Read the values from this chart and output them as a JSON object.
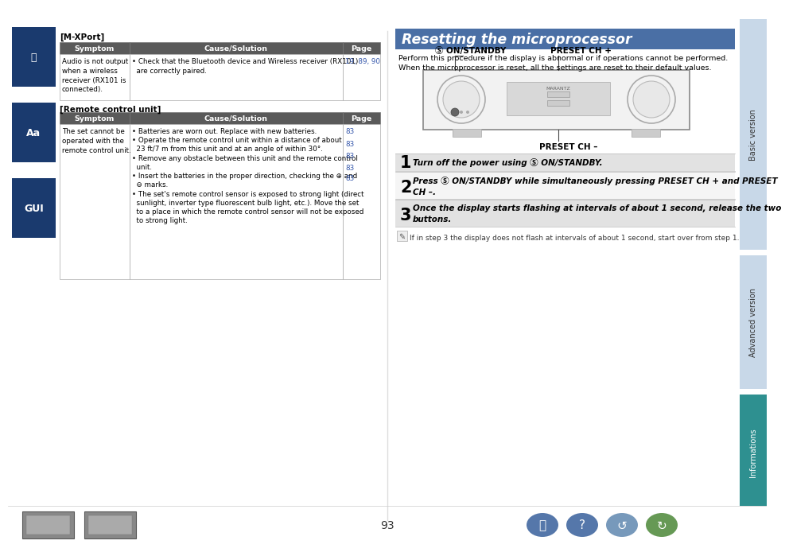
{
  "bg_color": "#ffffff",
  "title_bg": "#4a6fa5",
  "title_text": "Resetting the microprocessor",
  "title_color": "#ffffff",
  "header_bg": "#5a5a5a",
  "header_text_color": "#ffffff",
  "mxport_label": "[M-XPort]",
  "remote_label": "[Remote control unit]",
  "table1_headers": [
    "Symptom",
    "Cause/Solution",
    "Page"
  ],
  "table1_symptom": "Audio is not output\nwhen a wireless\nreceiver (RX101 is\nconnected).",
  "table1_cause": "• Check that the Bluetooth device and Wireless receiver (RX101)\n  are correctly paired.",
  "table1_page": "19, 89, 90",
  "table2_headers": [
    "Symptom",
    "Cause/Solution",
    "Page"
  ],
  "table2_symptom": "The set cannot be\noperated with the\nremote control unit.",
  "table2_causes": [
    "• Batteries are worn out. Replace with new batteries.",
    "• Operate the remote control unit within a distance of about\n  23 ft/7 m from this unit and at an angle of within 30°.",
    "• Remove any obstacle between this unit and the remote control\n  unit.",
    "• Insert the batteries in the proper direction, checking the ⊕ and\n  ⊖ marks.",
    "• The set's remote control sensor is exposed to strong light (direct\n  sunlight, inverter type fluorescent bulb light, etc.). Move the set\n  to a place in which the remote control sensor will not be exposed\n  to strong light."
  ],
  "table2_pages": [
    "83",
    "83",
    "83",
    "83",
    "83"
  ],
  "intro_text": "Perform this procedure if the display is abnormal or if operations cannot be performed.\nWhen the microprocessor is reset, all the settings are reset to their default values.",
  "label_onstandby": "Ⓢ ON/STANDBY",
  "label_presetch_plus": "PRESET CH +",
  "label_presetch_minus": "PRESET CH –",
  "step1_text_normal": "Turn off the power using ",
  "step1_text_bold": "Ⓢ ON/STANDBY.",
  "step2_line1": "Press Ⓢ ON/STANDBY while simultaneously pressing PRESET CH + and PRESET",
  "step2_line2": "CH –.",
  "step3_line1": "Once the display starts flashing at intervals of about 1 second, release the two",
  "step3_line2": "buttons.",
  "note_text": "If in step 3 the display does not flash at intervals of about 1 second, start over from step 1.",
  "page_number": "93",
  "link_color": "#3355aa"
}
